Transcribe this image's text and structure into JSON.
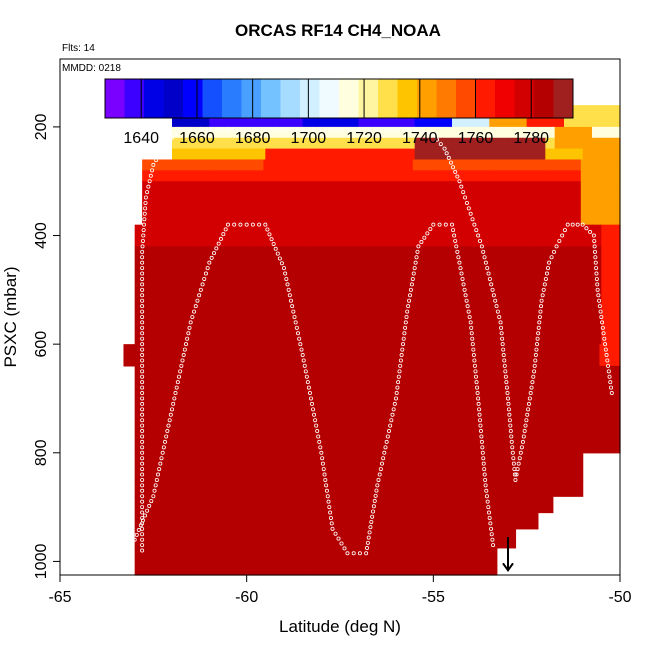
{
  "chart_data": {
    "type": "heatmap",
    "title": "ORCAS RF14 CH4_NOAA",
    "header_lines": [
      "Flts: 14",
      "MMDD: 0218"
    ],
    "xlabel": "Latitude (deg N)",
    "ylabel": "PSXC (mbar)",
    "xlim": [
      -65,
      -50
    ],
    "ylim": [
      1025,
      75
    ],
    "x_ticks": [
      -65,
      -60,
      -55,
      -50
    ],
    "y_ticks": [
      200,
      400,
      600,
      800,
      1000
    ],
    "colorbar": {
      "range": [
        1627,
        1795
      ],
      "ticks": [
        1640,
        1660,
        1680,
        1700,
        1720,
        1740,
        1760,
        1780
      ],
      "palette": [
        "#7a00ff",
        "#3b00ff",
        "#0000e6",
        "#0000c8",
        "#0000ff",
        "#1550ff",
        "#2a7cff",
        "#4aa0ff",
        "#74c2ff",
        "#a6dcff",
        "#d2f0ff",
        "#f0fbff",
        "#ffffe0",
        "#fff5a0",
        "#ffe04a",
        "#ffc400",
        "#ffa000",
        "#ff7a00",
        "#ff4a00",
        "#ff1a00",
        "#f00000",
        "#d20000",
        "#b40000",
        "#a02020"
      ]
    },
    "cells": {
      "x_start": -63.0,
      "x_end": -50.0,
      "dx": 0.25,
      "rows": [
        {
          "y": [
            160,
            180
          ],
          "ranges": [
            [
              -62.0,
              -50.0,
              1700
            ]
          ]
        },
        {
          "y": [
            180,
            200
          ],
          "ranges": [
            [
              -62.0,
              -50.0,
              1705
            ]
          ]
        },
        {
          "y": [
            200,
            220
          ],
          "ranges": [
            [
              -62.0,
              -50.0,
              1712
            ]
          ]
        },
        {
          "y": [
            220,
            240
          ],
          "ranges": [
            [
              -62.0,
              -50.0,
              1725
            ]
          ]
        },
        {
          "y": [
            240,
            260
          ],
          "ranges": [
            [
              -62.0,
              -50.0,
              1738
            ]
          ]
        },
        {
          "y": [
            260,
            280
          ],
          "ranges": [
            [
              -62.8,
              -50.0,
              1755
            ]
          ]
        },
        {
          "y": [
            280,
            300
          ],
          "ranges": [
            [
              -62.8,
              -50.0,
              1760
            ]
          ]
        },
        {
          "y": [
            300,
            330
          ],
          "ranges": [
            [
              -62.8,
              -50.0,
              1775
            ]
          ]
        },
        {
          "y": [
            330,
            380
          ],
          "ranges": [
            [
              -62.8,
              -50.0,
              1780
            ]
          ]
        },
        {
          "y": [
            380,
            420
          ],
          "ranges": [
            [
              -63.0,
              -50.0,
              1780
            ]
          ]
        },
        {
          "y": [
            420,
            600
          ],
          "ranges": [
            [
              -63.0,
              -50.0,
              1783
            ]
          ]
        },
        {
          "y": [
            600,
            640
          ],
          "ranges": [
            [
              -63.3,
              -50.0,
              1783
            ]
          ]
        },
        {
          "y": [
            640,
            800
          ],
          "ranges": [
            [
              -63.0,
              -50.0,
              1782
            ]
          ]
        },
        {
          "y": [
            800,
            820
          ],
          "ranges": [
            [
              -63.0,
              -51.0,
              1781
            ]
          ]
        },
        {
          "y": [
            820,
            850
          ],
          "ranges": [
            [
              -63.0,
              -51.0,
              1782
            ]
          ]
        },
        {
          "y": [
            850,
            880
          ],
          "ranges": [
            [
              -63.0,
              -51.0,
              1783
            ]
          ]
        },
        {
          "y": [
            880,
            910
          ],
          "ranges": [
            [
              -63.0,
              -51.8,
              1782
            ]
          ]
        },
        {
          "y": [
            910,
            940
          ],
          "ranges": [
            [
              -63.0,
              -52.2,
              1782
            ]
          ]
        },
        {
          "y": [
            940,
            975
          ],
          "ranges": [
            [
              -63.0,
              -52.8,
              1783
            ]
          ]
        },
        {
          "y": [
            975,
            1025
          ],
          "ranges": [
            [
              -63.0,
              -53.3,
              1783
            ]
          ]
        }
      ],
      "overrides": [
        {
          "x": [
            -62.5,
            -61.0
          ],
          "y": [
            160,
            200
          ],
          "v": 1650
        },
        {
          "x": [
            -61.0,
            -58.5
          ],
          "y": [
            160,
            200
          ],
          "v": 1640
        },
        {
          "x": [
            -58.5,
            -57.0
          ],
          "y": [
            160,
            200
          ],
          "v": 1645
        },
        {
          "x": [
            -57.0,
            -55.5
          ],
          "y": [
            160,
            200
          ],
          "v": 1640
        },
        {
          "x": [
            -55.5,
            -54.5
          ],
          "y": [
            160,
            200
          ],
          "v": 1660
        },
        {
          "x": [
            -54.5,
            -53.5
          ],
          "y": [
            160,
            200
          ],
          "v": 1700
        },
        {
          "x": [
            -53.5,
            -52.5
          ],
          "y": [
            160,
            200
          ],
          "v": 1740
        },
        {
          "x": [
            -52.5,
            -51.5
          ],
          "y": [
            160,
            200
          ],
          "v": 1760
        },
        {
          "x": [
            -51.5,
            -50.0
          ],
          "y": [
            160,
            200
          ],
          "v": 1725
        },
        {
          "x": [
            -55.5,
            -52.0
          ],
          "y": [
            220,
            260
          ],
          "v": 1790
        },
        {
          "x": [
            -59.5,
            -55.5
          ],
          "y": [
            240,
            280
          ],
          "v": 1760
        },
        {
          "x": [
            -51.8,
            -50.8
          ],
          "y": [
            200,
            240
          ],
          "v": 1740
        },
        {
          "x": [
            -51.0,
            -50.0
          ],
          "y": [
            220,
            400
          ],
          "v": 1740
        },
        {
          "x": [
            -50.6,
            -50.0
          ],
          "y": [
            380,
            720
          ],
          "v": 1760
        },
        {
          "x": [
            -50.3,
            -50.0
          ],
          "y": [
            250,
            300
          ],
          "v": 1720
        },
        {
          "x": [
            -57.5,
            -54.5
          ],
          "y": [
            740,
            790
          ],
          "v": 1790
        }
      ]
    },
    "flight_track": [
      [
        -62.8,
        980
      ],
      [
        -62.8,
        950
      ],
      [
        -62.8,
        800
      ],
      [
        -62.8,
        600
      ],
      [
        -62.8,
        430
      ],
      [
        -62.7,
        330
      ],
      [
        -62.5,
        270
      ],
      [
        -62.2,
        235
      ],
      [
        -61.8,
        205
      ],
      [
        -60.5,
        205
      ],
      [
        -58.5,
        205
      ],
      [
        -57.0,
        205
      ],
      [
        -55.5,
        205
      ],
      [
        -55.0,
        215
      ],
      [
        -54.7,
        240
      ],
      [
        -54.3,
        300
      ],
      [
        -54.0,
        360
      ],
      [
        -53.7,
        420
      ],
      [
        -53.2,
        560
      ],
      [
        -53.0,
        700
      ],
      [
        -52.9,
        780
      ],
      [
        -52.8,
        850
      ],
      [
        -52.6,
        780
      ],
      [
        -52.3,
        650
      ],
      [
        -52.1,
        520
      ],
      [
        -51.9,
        450
      ],
      [
        -51.7,
        420
      ],
      [
        -51.4,
        380
      ],
      [
        -51.0,
        380
      ],
      [
        -50.7,
        400
      ],
      [
        -50.6,
        500
      ],
      [
        -50.4,
        600
      ],
      [
        -50.2,
        700
      ]
    ],
    "flight_track_2": [
      [
        -63.0,
        960
      ],
      [
        -62.5,
        880
      ],
      [
        -62.0,
        720
      ],
      [
        -61.5,
        560
      ],
      [
        -61.0,
        450
      ],
      [
        -60.5,
        380
      ],
      [
        -60.0,
        380
      ],
      [
        -59.5,
        380
      ],
      [
        -59.0,
        460
      ],
      [
        -58.5,
        620
      ],
      [
        -58.0,
        800
      ],
      [
        -57.7,
        940
      ],
      [
        -57.3,
        985
      ],
      [
        -56.8,
        985
      ],
      [
        -56.5,
        860
      ],
      [
        -56.0,
        700
      ],
      [
        -55.7,
        540
      ],
      [
        -55.4,
        420
      ],
      [
        -55.0,
        380
      ],
      [
        -54.5,
        380
      ],
      [
        -54.3,
        450
      ],
      [
        -54.0,
        560
      ],
      [
        -53.8,
        700
      ],
      [
        -53.6,
        860
      ],
      [
        -53.4,
        970
      ],
      [
        -53.2,
        975
      ]
    ],
    "arrow": {
      "x": -53.0,
      "y_from": 955,
      "y_to": 1020
    }
  }
}
